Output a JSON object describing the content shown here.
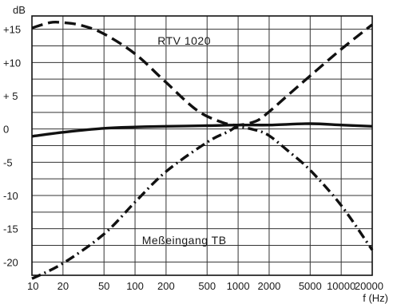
{
  "chart_data": {
    "type": "line",
    "title": "",
    "xlabel": "f (Hz)",
    "ylabel": "dB",
    "xscale": "log",
    "xlim": [
      10,
      20000
    ],
    "ylim": [
      -22,
      17
    ],
    "grid": true,
    "x_ticks": [
      {
        "value": 10,
        "label": "10"
      },
      {
        "value": 20,
        "label": "20"
      },
      {
        "value": 50,
        "label": "50"
      },
      {
        "value": 100,
        "label": "100"
      },
      {
        "value": 200,
        "label": "200"
      },
      {
        "value": 500,
        "label": "500"
      },
      {
        "value": 1000,
        "label": "1000"
      },
      {
        "value": 2000,
        "label": "2000"
      },
      {
        "value": 5000,
        "label": "5000"
      },
      {
        "value": 10000,
        "label": "10000"
      },
      {
        "value": 20000,
        "label": "20000"
      }
    ],
    "y_ticks": [
      {
        "value": 15,
        "label": "+15"
      },
      {
        "value": 10,
        "label": "+10"
      },
      {
        "value": 5,
        "label": "+ 5"
      },
      {
        "value": 0,
        "label": "0"
      },
      {
        "value": -5,
        "label": "-5"
      },
      {
        "value": -10,
        "label": "-10"
      },
      {
        "value": -15,
        "label": "-15"
      },
      {
        "value": -20,
        "label": "-20"
      }
    ],
    "annotations": [
      {
        "text": "RTV 1020",
        "x": 300,
        "y": 12.7
      },
      {
        "text": "Meßeingang TB",
        "x": 300,
        "y": -17.3
      }
    ],
    "series": [
      {
        "style": "dashed",
        "color": "#111111",
        "x": [
          10,
          15,
          20,
          30,
          50,
          100,
          200,
          400,
          700,
          1000,
          1500,
          2000,
          3000,
          5000,
          10000,
          20000
        ],
        "y": [
          15.2,
          16.0,
          16.0,
          15.6,
          14.3,
          11.3,
          7.0,
          2.8,
          1.0,
          0.6,
          1.2,
          2.6,
          5.0,
          8.0,
          12.0,
          15.7
        ]
      },
      {
        "style": "solid",
        "color": "#111111",
        "x": [
          10,
          20,
          50,
          100,
          200,
          500,
          1000,
          2000,
          5000,
          10000,
          20000
        ],
        "y": [
          -1.1,
          -0.5,
          0.1,
          0.3,
          0.4,
          0.5,
          0.6,
          0.6,
          0.8,
          0.6,
          0.4
        ]
      },
      {
        "style": "dash-dot",
        "color": "#111111",
        "x": [
          10,
          20,
          50,
          100,
          200,
          500,
          800,
          1000,
          1500,
          2000,
          3000,
          5000,
          10000,
          20000
        ],
        "y": [
          -22.5,
          -20.2,
          -15.8,
          -11.0,
          -6.4,
          -2.0,
          -0.4,
          0.3,
          -0.2,
          -1.0,
          -3.2,
          -6.2,
          -11.5,
          -18.2
        ]
      }
    ]
  }
}
